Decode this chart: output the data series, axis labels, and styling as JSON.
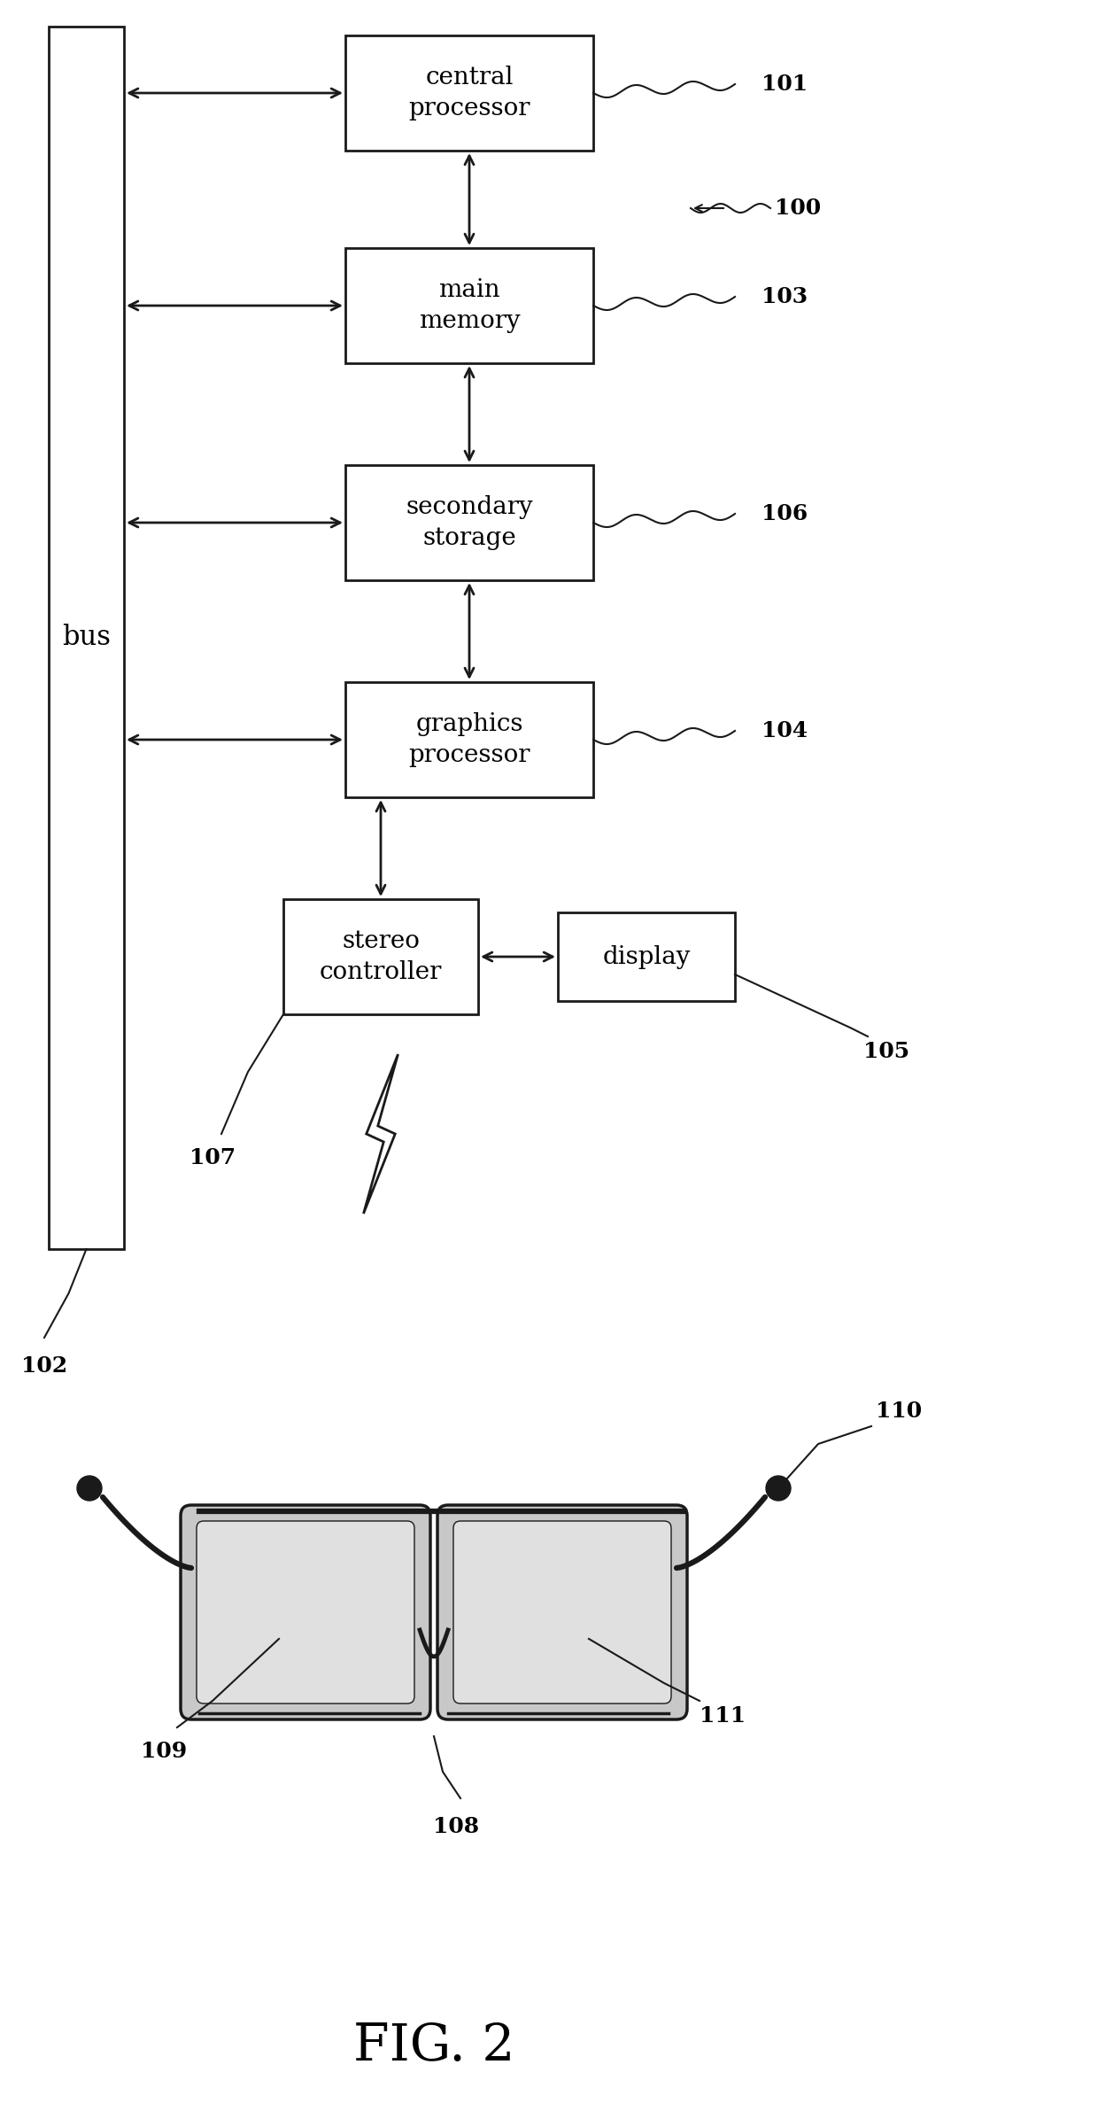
{
  "bg_color": "#ffffff",
  "line_color": "#1a1a1a",
  "fig_label": "FIG. 2",
  "bus_label": "bus",
  "box_labels": {
    "cpu": "central\nprocessor",
    "mem": "main\nmemory",
    "stor": "secondary\nstorage",
    "gpu": "graphics\nprocessor",
    "stereo": "stereo\ncontroller",
    "disp": "display"
  },
  "ref_nums": [
    "100",
    "101",
    "102",
    "103",
    "104",
    "105",
    "106",
    "107",
    "108",
    "109",
    "110",
    "111"
  ]
}
